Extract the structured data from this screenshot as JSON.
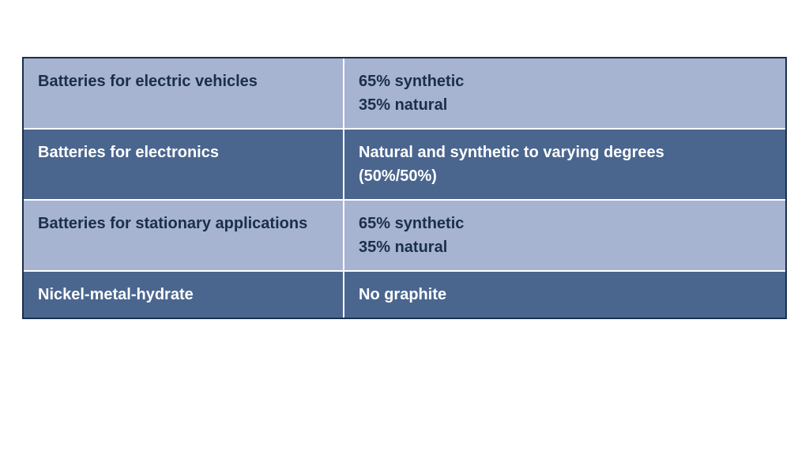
{
  "table": {
    "border_color": "#1a2f4a",
    "divider_color": "#ffffff",
    "light_bg": "#a6b3d1",
    "light_text": "#1a2f4a",
    "dark_bg": "#4a668f",
    "dark_text": "#ffffff",
    "font_size": 20,
    "font_weight": 700,
    "col_left_width": 404,
    "total_width": 968,
    "rows": [
      {
        "variant": "light",
        "label": "Batteries for electric vehicles",
        "value_line1": "65% synthetic",
        "value_line2": "35% natural"
      },
      {
        "variant": "dark",
        "label": "Batteries for electronics",
        "value_line1": "Natural and synthetic to varying degrees",
        "value_line2": "(50%/50%)"
      },
      {
        "variant": "light",
        "label": "Batteries for stationary applications",
        "value_line1": "65% synthetic",
        "value_line2": "35% natural"
      },
      {
        "variant": "dark",
        "label": "Nickel-metal-hydrate",
        "value_line1": "No graphite",
        "value_line2": ""
      }
    ]
  }
}
